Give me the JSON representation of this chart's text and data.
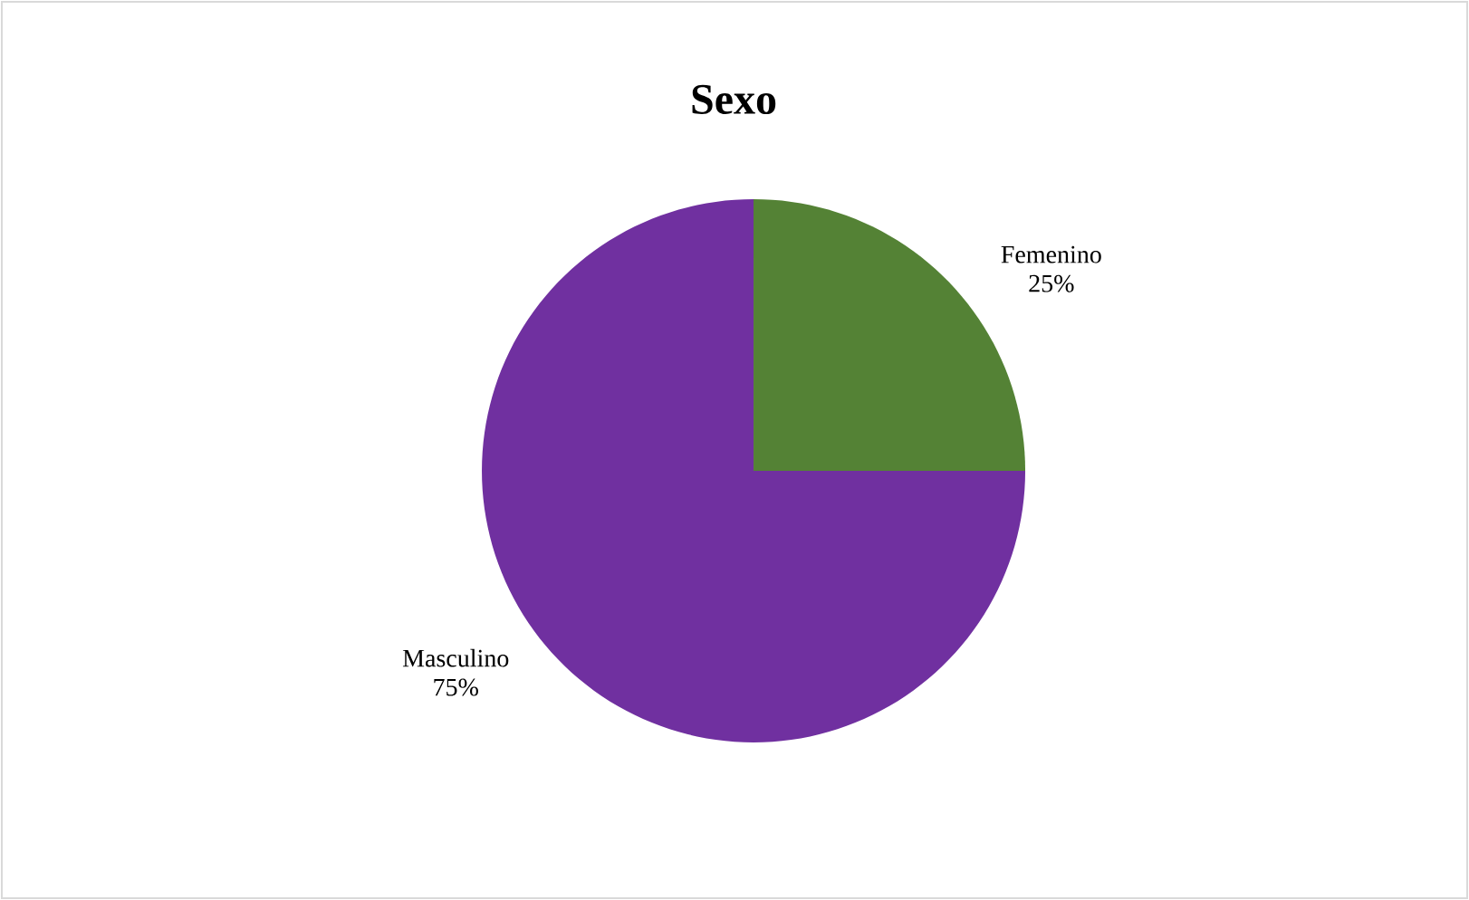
{
  "chart_data": {
    "type": "pie",
    "title": "Sexo",
    "categories": [
      "Femenino",
      "Masculino"
    ],
    "values": [
      25,
      75
    ],
    "colors": [
      "#548235",
      "#7030a0"
    ],
    "value_labels": [
      "25%",
      "75%"
    ]
  }
}
